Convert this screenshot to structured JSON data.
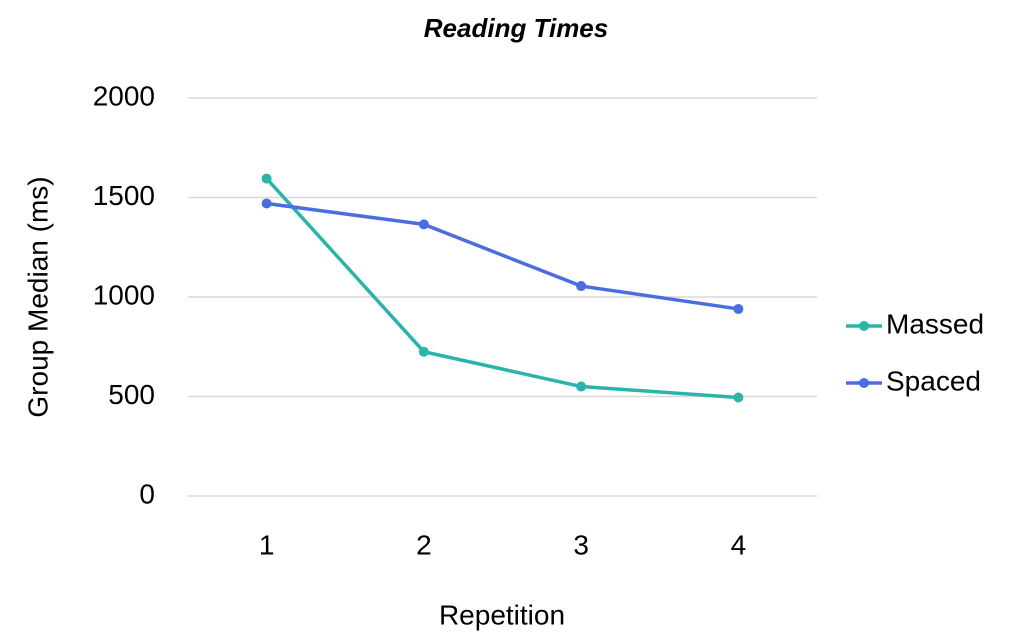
{
  "chart_data": {
    "type": "line",
    "title": "Reading Times",
    "x_label": "Repetition",
    "y_label": "Group Median (ms)",
    "categories": [
      "1",
      "2",
      "3",
      "4"
    ],
    "series": [
      {
        "name": "Massed",
        "color": "#2ab5a8",
        "values": [
          1595,
          725,
          550,
          495
        ]
      },
      {
        "name": "Spaced",
        "color": "#4a6ee0",
        "values": [
          1470,
          1365,
          1055,
          940
        ]
      }
    ],
    "ylim": [
      0,
      2000
    ],
    "yticks": [
      0,
      500,
      1000,
      1500,
      2000
    ],
    "grid": true,
    "legend": "right"
  }
}
